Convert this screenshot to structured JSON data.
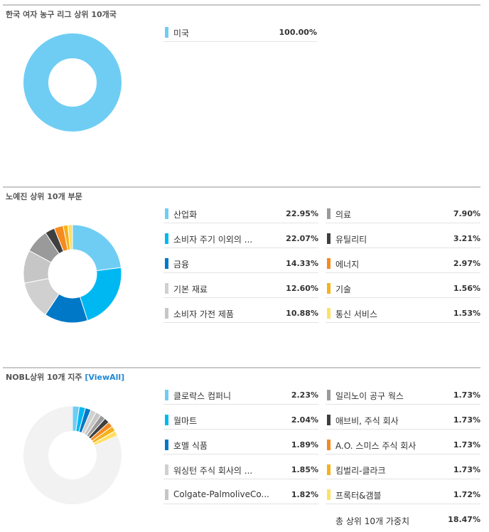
{
  "sections": [
    {
      "title": "한국 여자 농구 리그 상위 10개국",
      "link": "",
      "legend": [
        {
          "label": "미국",
          "value": "100.00%",
          "color": "#6fcdf4"
        }
      ]
    },
    {
      "title": "노예진 상위 10개 부문",
      "link": "",
      "legend": [
        {
          "label": "산업화",
          "value": "22.95%",
          "color": "#6fcdf4"
        },
        {
          "label": "소비자 주기 이외의 ...",
          "value": "22.07%",
          "color": "#00b8f1"
        },
        {
          "label": "금융",
          "value": "14.33%",
          "color": "#0078c8"
        },
        {
          "label": "기본 재료",
          "value": "12.60%",
          "color": "#d0d0d0"
        },
        {
          "label": "소비자 가전 제품",
          "value": "10.88%",
          "color": "#c6c6c6"
        },
        {
          "label": "의료",
          "value": "7.90%",
          "color": "#9a9a9a"
        },
        {
          "label": "유틸리티",
          "value": "3.21%",
          "color": "#3f3f3f"
        },
        {
          "label": "에너지",
          "value": "2.97%",
          "color": "#f58a1f"
        },
        {
          "label": "기술",
          "value": "1.56%",
          "color": "#f6b21c"
        },
        {
          "label": "통신 서비스",
          "value": "1.53%",
          "color": "#ffe066"
        }
      ]
    },
    {
      "title": "NOBL상위 10개 지주",
      "link": "[ViewAll]",
      "legend": [
        {
          "label": "클로락스 컴퍼니",
          "value": "2.23%",
          "color": "#6fcdf4"
        },
        {
          "label": "월마트",
          "value": "2.04%",
          "color": "#00b8f1"
        },
        {
          "label": "호멜 식품",
          "value": "1.89%",
          "color": "#0078c8"
        },
        {
          "label": "워싱턴 주식 회사의 ...",
          "value": "1.85%",
          "color": "#d0d0d0"
        },
        {
          "label": "Colgate-PalmoliveCo...",
          "value": "1.82%",
          "color": "#c6c6c6"
        },
        {
          "label": "일리노이 공구 웍스",
          "value": "1.73%",
          "color": "#9a9a9a"
        },
        {
          "label": "애브비, 주식 회사",
          "value": "1.73%",
          "color": "#3f3f3f"
        },
        {
          "label": "A.O. 스미스 주식 회사",
          "value": "1.73%",
          "color": "#f58a1f"
        },
        {
          "label": "킴벌리-클라크",
          "value": "1.73%",
          "color": "#f6b21c"
        },
        {
          "label": "프록터&갬블",
          "value": "1.72%",
          "color": "#ffe066"
        }
      ],
      "remainder_color": "#f2f2f2",
      "total": {
        "label": "총 상위 10개 가중치",
        "value": "18.47%"
      }
    }
  ],
  "chart_data": [
    {
      "type": "pie",
      "title": "한국 여자 농구 리그 상위 10개국",
      "categories": [
        "미국"
      ],
      "values": [
        100.0
      ]
    },
    {
      "type": "pie",
      "title": "노예진 상위 10개 부문",
      "categories": [
        "산업화",
        "소비자 주기 이외의 ...",
        "금융",
        "기본 재료",
        "소비자 가전 제품",
        "의료",
        "유틸리티",
        "에너지",
        "기술",
        "통신 서비스"
      ],
      "values": [
        22.95,
        22.07,
        14.33,
        12.6,
        10.88,
        7.9,
        3.21,
        2.97,
        1.56,
        1.53
      ]
    },
    {
      "type": "pie",
      "title": "NOBL상위 10개 지주",
      "categories": [
        "클로락스 컴퍼니",
        "월마트",
        "호멜 식품",
        "워싱턴 주식 회사의 ...",
        "Colgate-PalmoliveCo...",
        "일리노이 공구 웍스",
        "애브비, 주식 회사",
        "A.O. 스미스 주식 회사",
        "킴벌리-클라크",
        "프록터&갬블"
      ],
      "values": [
        2.23,
        2.04,
        1.89,
        1.85,
        1.82,
        1.73,
        1.73,
        1.73,
        1.73,
        1.72
      ]
    }
  ]
}
